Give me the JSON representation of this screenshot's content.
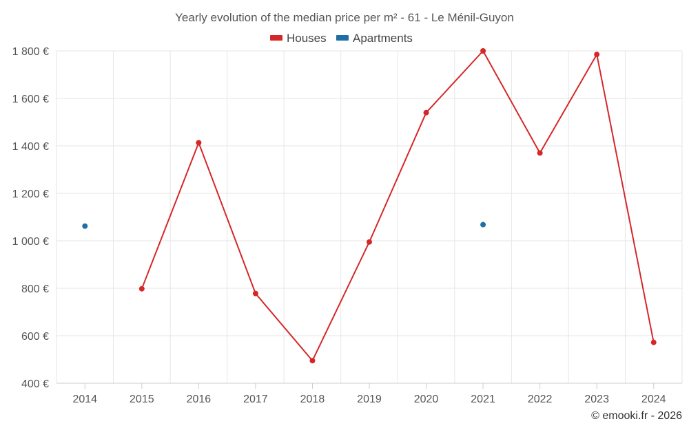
{
  "chart_data": {
    "type": "line",
    "title": "Yearly evolution of the median price per m² - 61 - Le Ménil-Guyon",
    "categories": [
      "2014",
      "2015",
      "2016",
      "2017",
      "2018",
      "2019",
      "2020",
      "2021",
      "2022",
      "2023",
      "2024"
    ],
    "series": [
      {
        "name": "Houses",
        "color": "#d62728",
        "values": [
          null,
          798,
          1413,
          778,
          495,
          995,
          1540,
          1800,
          1370,
          1785,
          572
        ]
      },
      {
        "name": "Apartments",
        "color": "#1f6fa5",
        "values": [
          1062,
          null,
          null,
          null,
          null,
          null,
          null,
          1068,
          null,
          null,
          null
        ]
      }
    ],
    "yticks": [
      "400 €",
      "600 €",
      "800 €",
      "1 000 €",
      "1 200 €",
      "1 400 €",
      "1 600 €",
      "1 800 €"
    ],
    "ytick_values": [
      400,
      600,
      800,
      1000,
      1200,
      1400,
      1600,
      1800
    ],
    "ylim": [
      400,
      1800
    ],
    "xlabel": "",
    "ylabel": "",
    "legend_position": "top-center",
    "grid": true
  },
  "credit": "© emooki.fr - 2026"
}
